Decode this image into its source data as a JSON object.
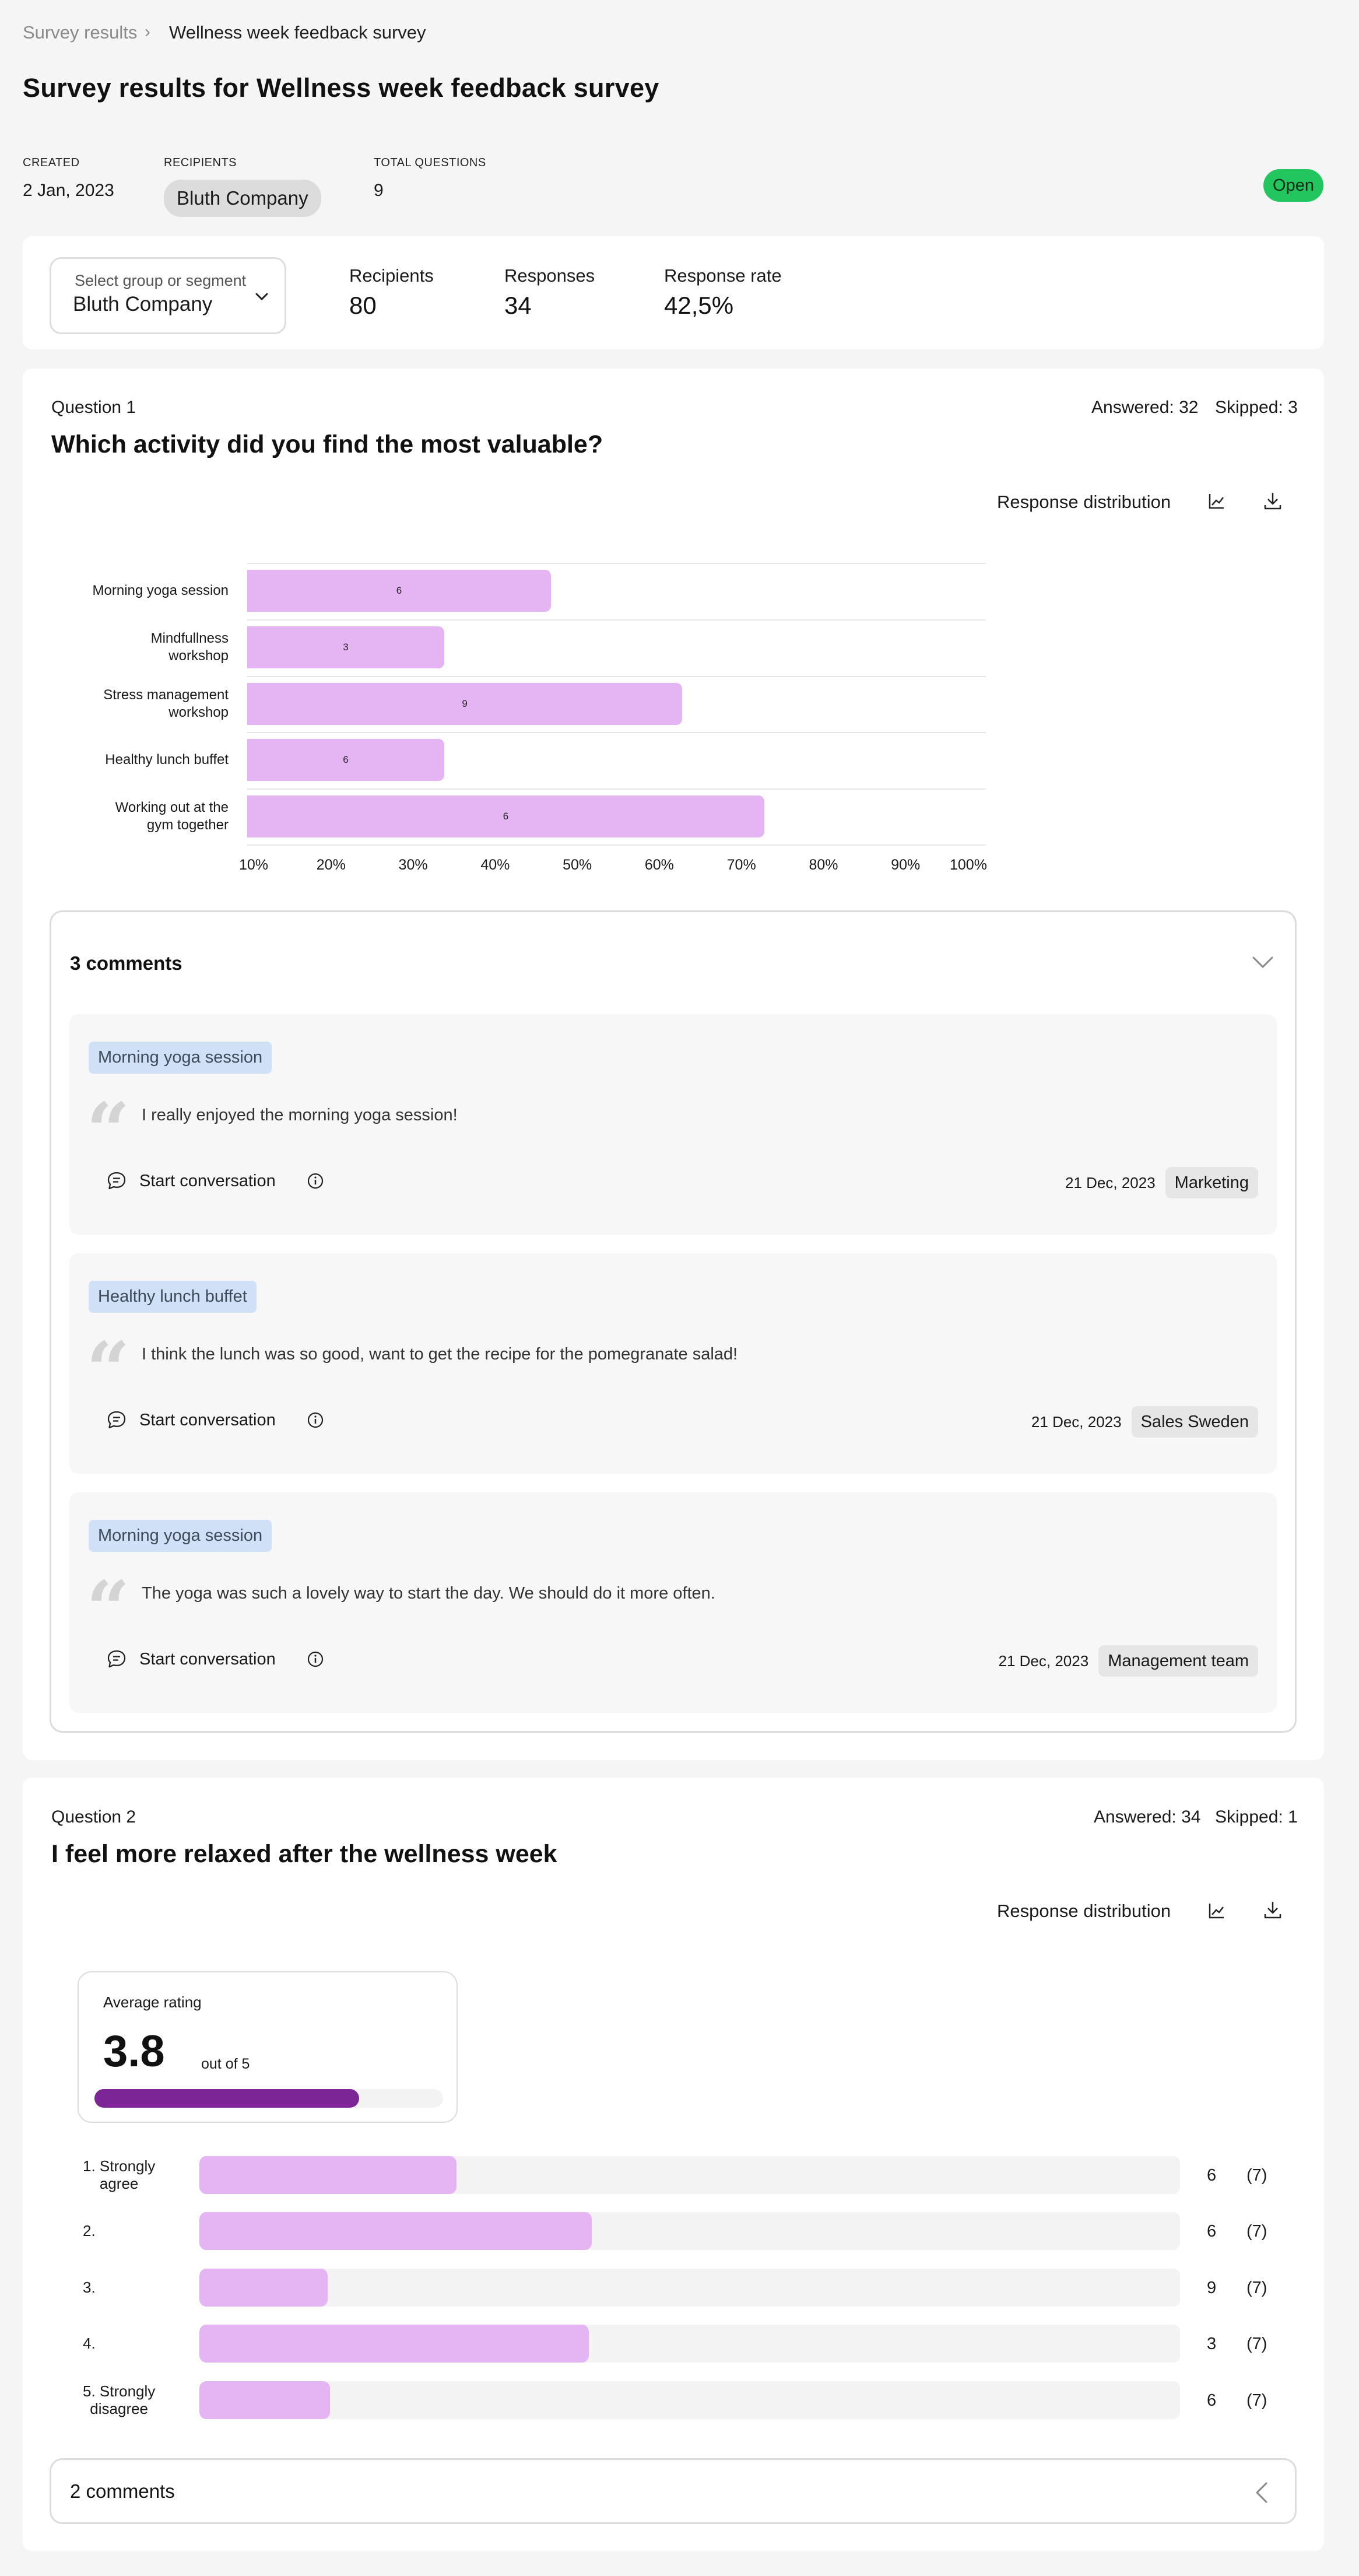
{
  "breadcrumb": {
    "parent": "Survey results",
    "separator": "›",
    "current": "Wellness week feedback survey"
  },
  "page_title": "Survey results for Wellness week feedback survey",
  "meta": {
    "created_label": "CREATED",
    "created_value": "2 Jan, 2023",
    "recipients_label": "RECIPIENTS",
    "recipients_value": "Bluth Company",
    "total_questions_label": "TOTAL QUESTIONS",
    "total_questions_value": "9",
    "status": "Open"
  },
  "filter": {
    "select_label": "Select group or segment",
    "select_value": "Bluth Company",
    "stats": [
      {
        "label": "Recipients",
        "value": "80"
      },
      {
        "label": "Responses",
        "value": "34"
      },
      {
        "label": "Response rate",
        "value": "42,5%"
      }
    ]
  },
  "question1": {
    "label": "Question 1",
    "title": "Which activity did you find the most valuable?",
    "answered": "Answered: 32",
    "skipped": "Skipped: 3",
    "response_distribution": "Response distribution",
    "chart_data": {
      "type": "bar",
      "orientation": "horizontal",
      "categories": [
        "Morning yoga session",
        "Mindfullness workshop",
        "Stress management workshop",
        "Healthy lunch buffet",
        "Working out at the gym together"
      ],
      "category_lines": [
        [
          "Morning yoga session"
        ],
        [
          "Mindfullness",
          "workshop"
        ],
        [
          "Stress management",
          "workshop"
        ],
        [
          "Healthy lunch buffet"
        ],
        [
          "Working out at the",
          "gym together"
        ]
      ],
      "values_percent": [
        47,
        34,
        63,
        34,
        73
      ],
      "data_labels": [
        "6",
        "3",
        "9",
        "6",
        "6"
      ],
      "x_ticks": [
        "10%",
        "20%",
        "30%",
        "40%",
        "50%",
        "60%",
        "70%",
        "80%",
        "90%",
        "100%"
      ],
      "xlim": [
        10,
        100
      ],
      "grid": true,
      "bar_color": "#e4b5f2"
    },
    "comments": {
      "title": "3 comments",
      "items": [
        {
          "tag": "Morning yoga session",
          "text": "I really enjoyed the morning yoga session!",
          "action": "Start conversation",
          "date": "21 Dec, 2023",
          "department": "Marketing"
        },
        {
          "tag": "Healthy lunch buffet",
          "text": "I think the lunch was so good, want to get the recipe for the pomegranate salad!",
          "action": "Start conversation",
          "date": "21 Dec, 2023",
          "department": "Sales Sweden"
        },
        {
          "tag": "Morning yoga session",
          "text": "The yoga was such a lovely way to start the day. We should do it more often.",
          "action": "Start conversation",
          "date": "21 Dec, 2023",
          "department": "Management team"
        }
      ]
    }
  },
  "question2": {
    "label": "Question 2",
    "title": "I feel more relaxed after the wellness week",
    "answered": "Answered: 34",
    "skipped": "Skipped: 1",
    "response_distribution": "Response distribution",
    "average": {
      "label": "Average rating",
      "value": "3.8",
      "suffix": "out of 5",
      "fraction": 0.76,
      "fill_color": "#7b2596"
    },
    "ratings": [
      {
        "lines": [
          "1. Strongly",
          "agree"
        ],
        "fraction": 0.262,
        "count": "6",
        "total": "(7)"
      },
      {
        "lines": [
          "2."
        ],
        "fraction": 0.4,
        "count": "6",
        "total": "(7)"
      },
      {
        "lines": [
          "3."
        ],
        "fraction": 0.131,
        "count": "9",
        "total": "(7)"
      },
      {
        "lines": [
          "4."
        ],
        "fraction": 0.397,
        "count": "3",
        "total": "(7)"
      },
      {
        "lines": [
          "5. Strongly",
          "disagree"
        ],
        "fraction": 0.133,
        "count": "6",
        "total": "(7)"
      }
    ],
    "comments_title": "2 comments"
  },
  "colors": {
    "open_badge": "#22c55e",
    "bar": "#e4b5f2",
    "tag_blue": "#cfe0f7"
  }
}
